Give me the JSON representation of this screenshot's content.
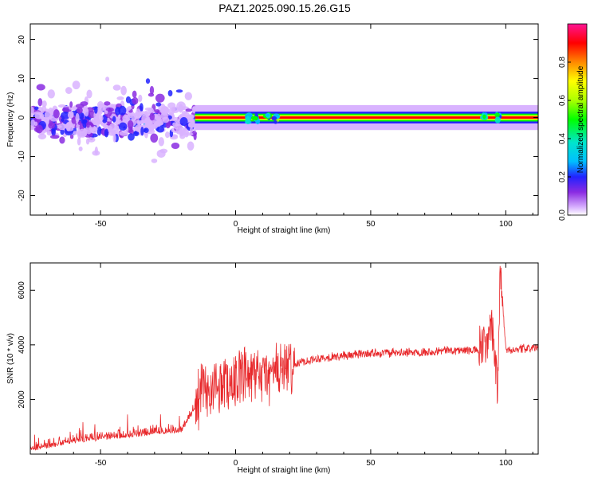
{
  "title": "PAZ1.2025.090.15.26.G15",
  "chart_data": [
    {
      "type": "heatmap",
      "xlabel": "Height of straight line (km)",
      "ylabel": "Frequency (Hz)",
      "xlim": [
        -76,
        112
      ],
      "ylim": [
        -25,
        24
      ],
      "xticks": [
        -50,
        0,
        50,
        100
      ],
      "yticks": [
        -20,
        -10,
        0,
        10,
        20
      ],
      "colorbar": {
        "label": "Normalized spectral amplitude",
        "range": [
          0,
          1
        ],
        "ticks": [
          0.0,
          0.2,
          0.4,
          0.6,
          0.8
        ],
        "colormap": [
          "#ffffff",
          "#d9b3ff",
          "#8a2be2",
          "#2222ff",
          "#00bfff",
          "#00e5cc",
          "#00ff00",
          "#aaff00",
          "#ffff00",
          "#ff8800",
          "#ff0000",
          "#ff1493"
        ]
      },
      "features": {
        "noisy_region": {
          "height_km": [
            -76,
            -15
          ],
          "frequency_hz": [
            -8,
            5
          ]
        },
        "stable_tone": {
          "height_km": [
            -15,
            112
          ],
          "frequency_hz": 0
        },
        "disturbances_height_km": [
          5,
          8,
          12,
          15,
          92,
          97
        ]
      }
    },
    {
      "type": "line",
      "xlabel": "Height of straight line (km)",
      "ylabel": "SNR (10 * v/v)",
      "xlim": [
        -76,
        112
      ],
      "ylim": [
        0,
        7000
      ],
      "xticks": [
        -50,
        0,
        50,
        100
      ],
      "yticks": [
        2000,
        4000,
        6000
      ],
      "color": "#e8282b",
      "series": [
        {
          "x": [
            -76,
            -70,
            -60,
            -50,
            -40,
            -30,
            -20,
            -15,
            -12,
            -10,
            -8,
            -5,
            0,
            5,
            10,
            15,
            20,
            25,
            30,
            40,
            50,
            60,
            70,
            80,
            90,
            93,
            95,
            97,
            98,
            100,
            105,
            112
          ],
          "values": [
            100,
            200,
            400,
            500,
            600,
            700,
            800,
            1600,
            2500,
            2200,
            2500,
            2600,
            2700,
            2800,
            2800,
            3000,
            3200,
            3400,
            3500,
            3600,
            3700,
            3700,
            3750,
            3800,
            3800,
            4000,
            4500,
            2500,
            6800,
            3800,
            3850,
            3900
          ]
        }
      ]
    }
  ]
}
